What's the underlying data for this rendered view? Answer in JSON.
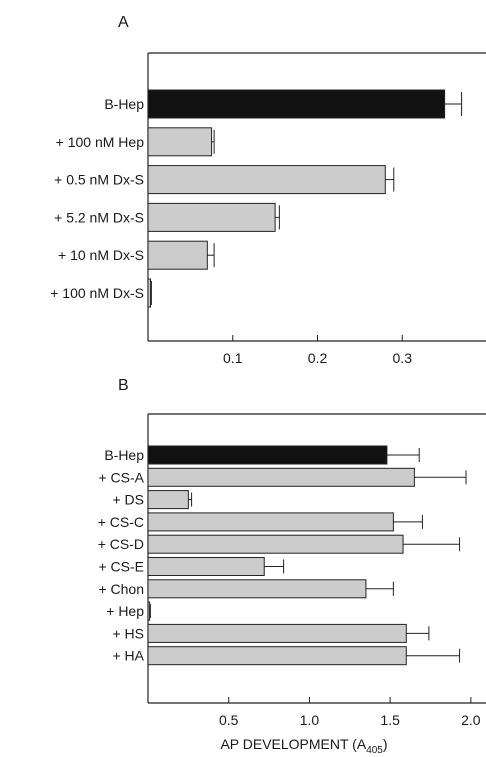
{
  "chart_data": [
    {
      "panel_label": "A",
      "type": "bar",
      "orientation": "horizontal",
      "categories": [
        "B-Hep",
        "+ 100 nM Hep",
        "+ 0.5 nM Dx-S",
        "+ 5.2 nM Dx-S",
        "+ 10 nM Dx-S",
        "+ 100 nM Dx-S"
      ],
      "values": [
        0.35,
        0.075,
        0.28,
        0.15,
        0.07,
        0.003
      ],
      "errors": [
        0.02,
        0.003,
        0.01,
        0.005,
        0.008,
        0.001
      ],
      "bar_colors": [
        "#111111",
        "#cccccc",
        "#cccccc",
        "#cccccc",
        "#cccccc",
        "#cccccc"
      ],
      "xlim": [
        0,
        0.4
      ],
      "xticks": [
        0.1,
        0.2,
        0.3
      ],
      "xtick_labels": [
        "0.1",
        "0.2",
        "0.3"
      ],
      "xlabel": ""
    },
    {
      "panel_label": "B",
      "type": "bar",
      "orientation": "horizontal",
      "categories": [
        "B-Hep",
        "+ CS-A",
        "+ DS",
        "+ CS-C",
        "+ CS-D",
        "+ CS-E",
        "+ Chon",
        "+ Hep",
        "+ HS",
        "+ HA"
      ],
      "values": [
        1.48,
        1.65,
        0.25,
        1.52,
        1.58,
        0.72,
        1.35,
        0.01,
        1.6,
        1.6
      ],
      "errors": [
        0.2,
        0.32,
        0.02,
        0.18,
        0.35,
        0.12,
        0.17,
        0.005,
        0.14,
        0.33
      ],
      "bar_colors": [
        "#111111",
        "#cccccc",
        "#cccccc",
        "#cccccc",
        "#cccccc",
        "#cccccc",
        "#cccccc",
        "#cccccc",
        "#cccccc",
        "#cccccc"
      ],
      "xlim": [
        0,
        2.1
      ],
      "xticks": [
        0.5,
        1.0,
        1.5,
        2.0
      ],
      "xtick_labels": [
        "0.5",
        "1.0",
        "1.5",
        "2.0"
      ],
      "xlabel_main": "AP DEVELOPMENT (A",
      "xlabel_sub": "405",
      "xlabel_end": ")"
    }
  ]
}
